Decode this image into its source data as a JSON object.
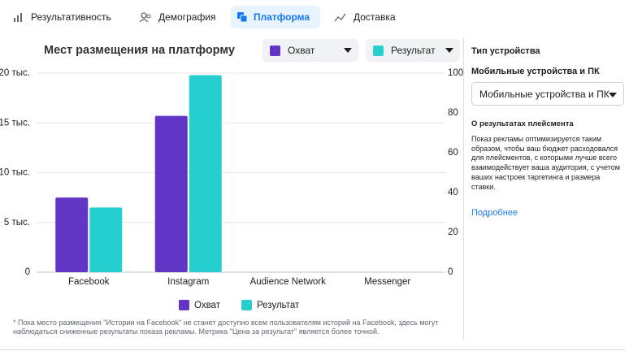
{
  "tabs": [
    "Результативность",
    "Демография",
    "Платформа",
    "Доставка"
  ],
  "active_tab": 2,
  "controls": {
    "metric_1": "Охват",
    "metric_2": "Результат"
  },
  "chart_data": {
    "type": "bar",
    "title": "Мест размещения на платформу",
    "categories": [
      "Facebook",
      "Instagram",
      "Audience Network",
      "Messenger"
    ],
    "series": [
      {
        "name": "Охват",
        "color": "#6236c5",
        "values": [
          7500,
          15700,
          0,
          0
        ]
      },
      {
        "name": "Результат",
        "color": "#26cfcf",
        "axis": "y2",
        "values": [
          32.5,
          99,
          0,
          0
        ]
      }
    ],
    "ylim": [
      0,
      20000
    ],
    "yticks": [
      0,
      {
        "value": 5000,
        "label": "5 тыс."
      },
      {
        "value": 10000,
        "label": "10 тыс."
      },
      {
        "value": 15000,
        "label": "15 тыс."
      },
      {
        "value": 20000,
        "label": "20 тыс."
      }
    ],
    "y2lim": [
      0,
      100
    ],
    "y2ticks": [
      0,
      20,
      40,
      60,
      80,
      100
    ],
    "grid": true,
    "footnote": "* Пока место размещения \"Истории на Facebook\" не станет доступно всем пользователям историй на Facebook, здесь могут наблюдаться сниженные результаты показа рекламы. Метрика \"Цена за результат\" является более точной."
  },
  "side_panel": {
    "heading": "Тип устройства",
    "subheading": "Мобильные устройства и ПК",
    "select": "Мобильные устройства и ПК",
    "about_title": "О результатах плейсмента",
    "about_text": "Показ рекламы оптимизируется таким образом, чтобы ваш бюджет расходовался для плейсментов, с которыми лучше всего взаимодействует ваша аудитория, с учетом ваших настроек таргетинга и размера ставки.",
    "link": "Подробнее"
  }
}
